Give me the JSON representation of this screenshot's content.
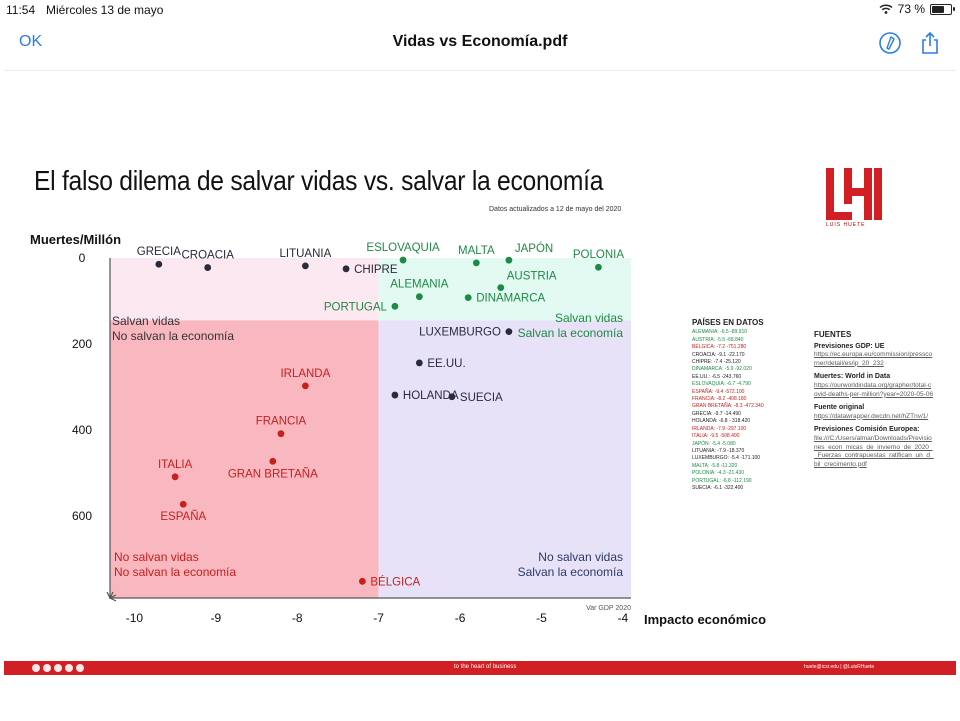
{
  "status_bar": {
    "time": "11:54",
    "date": "Miércoles 13 de mayo",
    "battery": "73 %",
    "battery_level": 0.73
  },
  "nav": {
    "ok_label": "OK",
    "title": "Vidas vs Economía.pdf"
  },
  "document": {
    "title": "El falso dilema de salvar vidas vs. salvar la economía",
    "date_note": "Datos actualizados a 12 de mayo del 2020",
    "logo_text": "LUIS HUETE",
    "data_panel": {
      "title": "PAÍSES EN DATOS",
      "rows": [
        {
          "text": "ALEMANIA: -6.5 -89.910",
          "group": "green"
        },
        {
          "text": "AUSTRIA: -5.5 -68.840",
          "group": "green"
        },
        {
          "text": "BÉLGICA: -7.2 -751.280",
          "group": "red"
        },
        {
          "text": "CROACIA: -9.1 -22.170",
          "group": "black"
        },
        {
          "text": "CHIPRE: -7.4 -25.120",
          "group": "black"
        },
        {
          "text": "DINAMARCA: -5.9 -92.020",
          "group": "green"
        },
        {
          "text": "EE.UU.: -6.5 -243.760",
          "group": "black"
        },
        {
          "text": "ESLOVAQUIA: -6.7 -4.790",
          "group": "green"
        },
        {
          "text": "ESPAÑA: -9.4 -572.100",
          "group": "red"
        },
        {
          "text": "FRANCIA: -8.2 -408.180",
          "group": "red"
        },
        {
          "text": "GRAN BRETAÑA: -8.3 -472.340",
          "group": "red"
        },
        {
          "text": "GRECIA: -9.7 -14.490",
          "group": "black"
        },
        {
          "text": "HOLANDA: -6.8 - 318.420",
          "group": "black"
        },
        {
          "text": "IRLANDA: -7.9 -297.100",
          "group": "red"
        },
        {
          "text": "ITALIA: -9.5 -508.400",
          "group": "red"
        },
        {
          "text": "JAPÓN: -5.4 -5.080",
          "group": "green"
        },
        {
          "text": "LITUANIA: -7.9 -18.370",
          "group": "black"
        },
        {
          "text": "LUXEMBURGO: -5.4 -171.100",
          "group": "black"
        },
        {
          "text": "MALTA: -5.8 -11.320",
          "group": "green"
        },
        {
          "text": "POLONIA: -4.3 -21.430",
          "group": "green"
        },
        {
          "text": "PORTUGAL: -6.8 -112.190",
          "group": "green"
        },
        {
          "text": "SUECIA: -6.1 -322.400",
          "group": "black"
        }
      ]
    },
    "sources": {
      "title": "FUENTES",
      "items": [
        {
          "label": "Previsiones GDP: UE",
          "link": "https://ec.europa.eu/commission/presscorner/detail/es/ip_20_232"
        },
        {
          "label": "Muertes: World in Data",
          "link": "https://ourworldindata.org/grapher/total-covid-deaths-per-million?year=2020-05-06"
        },
        {
          "label": "Fuente original",
          "link": "https://datawrapper.dwcdn.net/hZTnv/1/"
        },
        {
          "label": "Previsiones Comisión Europea:",
          "link": "file:///C:/Users/almar/Downloads/Previsiones_econ_micas_de_invierno_de_2020__Fuerzas_contrapuestas_ratifican_un_d_bil_crecimento.pdf"
        }
      ]
    },
    "footer": {
      "middle_text": "to the heart of business",
      "right_text": "huete@icsr.edu   |   @LuisRHuete"
    }
  },
  "chart_data": {
    "type": "scatter",
    "title": "El falso dilema de salvar vidas vs. salvar la economía",
    "ylabel": "Muertes/Millón",
    "xlabel": "Impacto económico",
    "x_note": "Var GDP 2020",
    "xlim": [
      -10.3,
      -3.9
    ],
    "ylim": [
      0,
      790
    ],
    "y_inverted": true,
    "x_ticks": [
      -10,
      -9,
      -8,
      -7,
      -6,
      -5,
      -4
    ],
    "y_ticks": [
      0,
      200,
      400,
      600
    ],
    "quadrants": [
      {
        "name": "top-left",
        "label_lines": [
          "Salvan vidas",
          "No salvan la economía"
        ],
        "color": "#fbe8f1",
        "label_color": "#333333"
      },
      {
        "name": "top-right",
        "label_lines": [
          "Salvan vidas",
          "Salvan la economía"
        ],
        "color": "#e2faf2",
        "label_color": "#1e8a44"
      },
      {
        "name": "bottom-left",
        "label_lines": [
          "No salvan vidas",
          "No salvan la economía"
        ],
        "color": "#f9b8c0",
        "label_color": "#c8201e"
      },
      {
        "name": "bottom-right",
        "label_lines": [
          "No salvan vidas",
          "Salvan la economía"
        ],
        "color": "#e8e2f8",
        "label_color": "#2a3a66"
      }
    ],
    "groups": {
      "green": "#1e8a44",
      "red": "#c8201e",
      "black": "#2a2a3a"
    },
    "points": [
      {
        "label": "GRECIA",
        "x": -9.7,
        "y": 14.49,
        "group": "black",
        "lp": "above"
      },
      {
        "label": "CROACIA",
        "x": -9.1,
        "y": 22.17,
        "group": "black",
        "lp": "above"
      },
      {
        "label": "LITUANIA",
        "x": -7.9,
        "y": 18.37,
        "group": "black",
        "lp": "above"
      },
      {
        "label": "CHIPRE",
        "x": -7.4,
        "y": 25.12,
        "group": "black",
        "lp": "right"
      },
      {
        "label": "ESLOVAQUIA",
        "x": -6.7,
        "y": 4.79,
        "group": "green",
        "lp": "above"
      },
      {
        "label": "MALTA",
        "x": -5.8,
        "y": 11.32,
        "group": "green",
        "lp": "above"
      },
      {
        "label": "JAPÓN",
        "x": -5.4,
        "y": 5.08,
        "group": "green",
        "lp": "above-right"
      },
      {
        "label": "POLONIA",
        "x": -4.3,
        "y": 21.43,
        "group": "green",
        "lp": "above"
      },
      {
        "label": "AUSTRIA",
        "x": -5.5,
        "y": 68.84,
        "group": "green",
        "lp": "above-right"
      },
      {
        "label": "ALEMANIA",
        "x": -6.5,
        "y": 89.91,
        "group": "green",
        "lp": "above"
      },
      {
        "label": "DINAMARCA",
        "x": -5.9,
        "y": 92.02,
        "group": "green",
        "lp": "right"
      },
      {
        "label": "PORTUGAL",
        "x": -6.8,
        "y": 112.19,
        "group": "green",
        "lp": "left"
      },
      {
        "label": "LUXEMBURGO",
        "x": -5.4,
        "y": 171.1,
        "group": "black",
        "lp": "left"
      },
      {
        "label": "EE.UU.",
        "x": -6.5,
        "y": 243.76,
        "group": "black",
        "lp": "right"
      },
      {
        "label": "HOLANDA",
        "x": -6.8,
        "y": 318.42,
        "group": "black",
        "lp": "right"
      },
      {
        "label": "SUECIA",
        "x": -6.1,
        "y": 322.4,
        "group": "black",
        "lp": "right"
      },
      {
        "label": "IRLANDA",
        "x": -7.9,
        "y": 297.1,
        "group": "red",
        "lp": "above"
      },
      {
        "label": "FRANCIA",
        "x": -8.2,
        "y": 408.18,
        "group": "red",
        "lp": "above"
      },
      {
        "label": "GRAN BRETAÑA",
        "x": -8.3,
        "y": 472.34,
        "group": "red",
        "lp": "below"
      },
      {
        "label": "ITALIA",
        "x": -9.5,
        "y": 508.4,
        "group": "red",
        "lp": "above"
      },
      {
        "label": "ESPAÑA",
        "x": -9.4,
        "y": 572.1,
        "group": "red",
        "lp": "below"
      },
      {
        "label": "BÉLGICA",
        "x": -7.2,
        "y": 751.28,
        "group": "red",
        "lp": "right"
      }
    ]
  }
}
